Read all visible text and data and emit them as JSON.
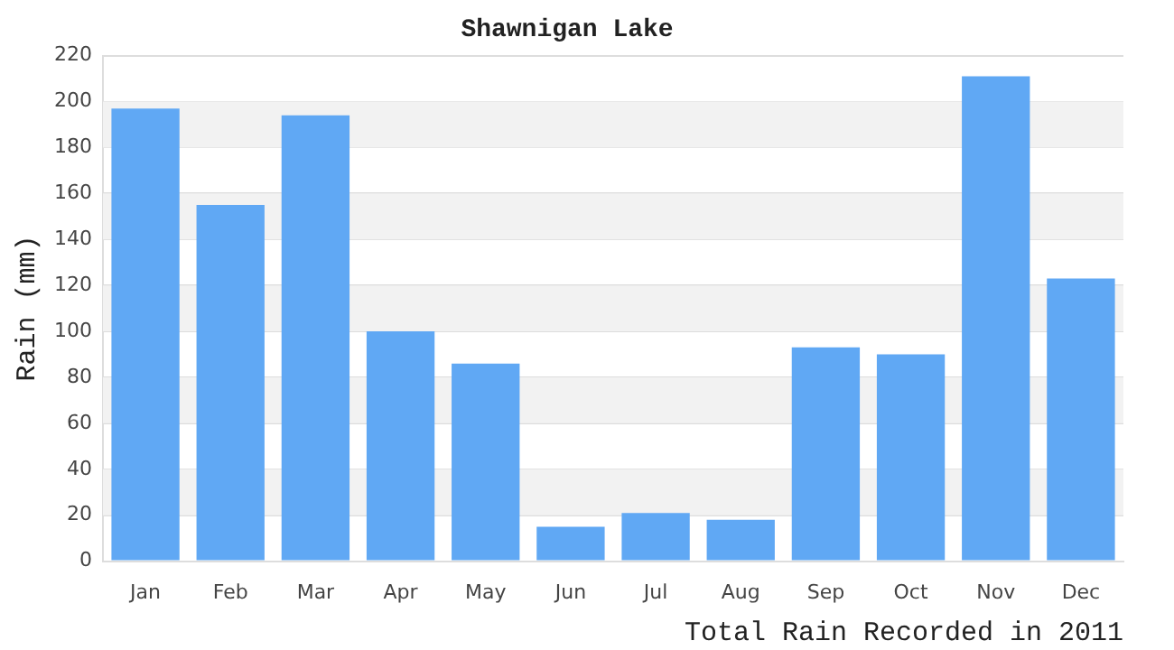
{
  "chart_data": {
    "type": "bar",
    "title": "Shawnigan Lake",
    "ylabel": "Rain (mm)",
    "categories": [
      "Jan",
      "Feb",
      "Mar",
      "Apr",
      "May",
      "Jun",
      "Jul",
      "Aug",
      "Sep",
      "Oct",
      "Nov",
      "Dec"
    ],
    "values": [
      197,
      155,
      194,
      100,
      86,
      15,
      21,
      18,
      93,
      90,
      211,
      123
    ],
    "color": "#60a8f4",
    "ylim": [
      0,
      220
    ],
    "yticks": [
      0,
      20,
      40,
      60,
      80,
      100,
      120,
      140,
      160,
      180,
      200,
      220
    ],
    "grid": "y",
    "annotations": [
      "Total Rain Recorded in 2011"
    ]
  }
}
